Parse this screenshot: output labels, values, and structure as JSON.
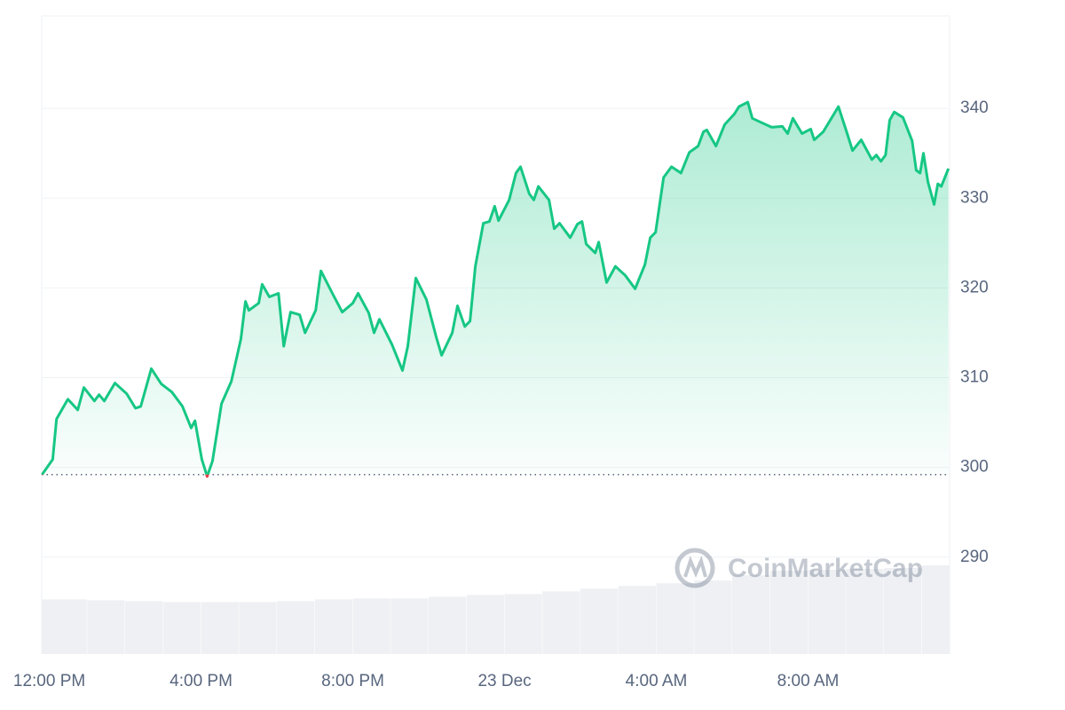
{
  "chart_data": {
    "type": "line",
    "color": "#16c784",
    "below_color": "#ea3943",
    "baseline": 299.2,
    "grid": true,
    "xlim": [
      -0.2,
      23.73
    ],
    "ylim": [
      279.2,
      350.3
    ],
    "yticks": [
      290,
      300,
      310,
      320,
      330,
      340
    ],
    "xticks": [
      {
        "value": 0,
        "label": "12:00 PM"
      },
      {
        "value": 4,
        "label": "4:00 PM"
      },
      {
        "value": 8,
        "label": "8:00 PM"
      },
      {
        "value": 12,
        "label": "23 Dec"
      },
      {
        "value": 16,
        "label": "4:00 AM"
      },
      {
        "value": 20,
        "label": "8:00 AM"
      }
    ],
    "x": [
      -0.19,
      0.09,
      0.19,
      0.49,
      0.75,
      0.91,
      1.19,
      1.31,
      1.45,
      1.73,
      2.04,
      2.27,
      2.41,
      2.69,
      2.95,
      3.23,
      3.51,
      3.74,
      3.84,
      4.02,
      4.16,
      4.3,
      4.54,
      4.8,
      5.05,
      5.17,
      5.26,
      5.52,
      5.61,
      5.8,
      6.04,
      6.18,
      6.36,
      6.6,
      6.74,
      7.02,
      7.16,
      7.46,
      7.72,
      8.0,
      8.14,
      8.42,
      8.56,
      8.7,
      9.03,
      9.31,
      9.45,
      9.66,
      9.94,
      10.2,
      10.34,
      10.62,
      10.76,
      10.95,
      11.09,
      11.23,
      11.44,
      11.6,
      11.74,
      11.84,
      12.12,
      12.3,
      12.42,
      12.65,
      12.77,
      12.89,
      13.17,
      13.31,
      13.45,
      13.73,
      13.92,
      14.04,
      14.15,
      14.39,
      14.48,
      14.69,
      14.92,
      15.18,
      15.44,
      15.7,
      15.84,
      15.98,
      16.19,
      16.4,
      16.65,
      16.87,
      17.1,
      17.24,
      17.33,
      17.57,
      17.8,
      18.06,
      18.18,
      18.41,
      18.53,
      18.78,
      19.04,
      19.32,
      19.46,
      19.6,
      19.84,
      20.07,
      20.16,
      20.4,
      20.8,
      21.03,
      21.17,
      21.4,
      21.68,
      21.8,
      21.92,
      22.04,
      22.15,
      22.27,
      22.5,
      22.74,
      22.85,
      22.95,
      23.04,
      23.16,
      23.32,
      23.42,
      23.51,
      23.7
    ],
    "values": [
      299.2,
      300.9,
      305.4,
      307.6,
      306.4,
      308.9,
      307.4,
      308.1,
      307.4,
      309.4,
      308.2,
      306.6,
      306.8,
      311.0,
      309.3,
      308.4,
      306.8,
      304.4,
      305.2,
      300.9,
      299.0,
      300.7,
      307.1,
      309.6,
      314.3,
      318.5,
      317.5,
      318.3,
      320.4,
      319.0,
      319.4,
      313.5,
      317.3,
      317.0,
      315.0,
      317.5,
      321.9,
      319.4,
      317.3,
      318.3,
      319.4,
      317.2,
      315.0,
      316.5,
      313.7,
      310.8,
      313.5,
      321.1,
      318.7,
      314.5,
      312.5,
      315.0,
      318.0,
      315.7,
      316.3,
      322.4,
      327.2,
      327.4,
      329.1,
      327.5,
      329.8,
      332.8,
      333.5,
      330.5,
      329.8,
      331.3,
      329.8,
      326.6,
      327.2,
      325.6,
      327.1,
      327.4,
      324.9,
      323.9,
      325.1,
      320.6,
      322.4,
      321.4,
      319.9,
      322.6,
      325.6,
      326.2,
      332.3,
      333.5,
      332.8,
      335.1,
      335.8,
      337.4,
      337.6,
      335.8,
      338.2,
      339.4,
      340.2,
      340.7,
      338.9,
      338.4,
      337.9,
      338.0,
      337.2,
      338.9,
      337.2,
      337.7,
      336.5,
      337.4,
      340.2,
      337.2,
      335.3,
      336.5,
      334.3,
      334.8,
      334.1,
      334.8,
      338.7,
      339.6,
      339.0,
      336.4,
      333.1,
      332.8,
      335.0,
      331.8,
      329.3,
      331.6,
      331.3,
      333.3
    ],
    "volume": {
      "color": "#eef0f3",
      "x": [
        -0.2,
        1,
        2,
        3,
        4,
        5,
        6,
        7,
        8,
        9,
        10,
        11,
        12,
        13,
        14,
        15,
        16,
        17,
        18,
        19,
        20,
        21,
        22,
        23
      ],
      "values": [
        61,
        60,
        59,
        58,
        58,
        58,
        59,
        61,
        62,
        62,
        64,
        66,
        67,
        70,
        73,
        76,
        79,
        82,
        88,
        93,
        94,
        95,
        96,
        99
      ]
    },
    "watermark": "CoinMarketCap"
  }
}
